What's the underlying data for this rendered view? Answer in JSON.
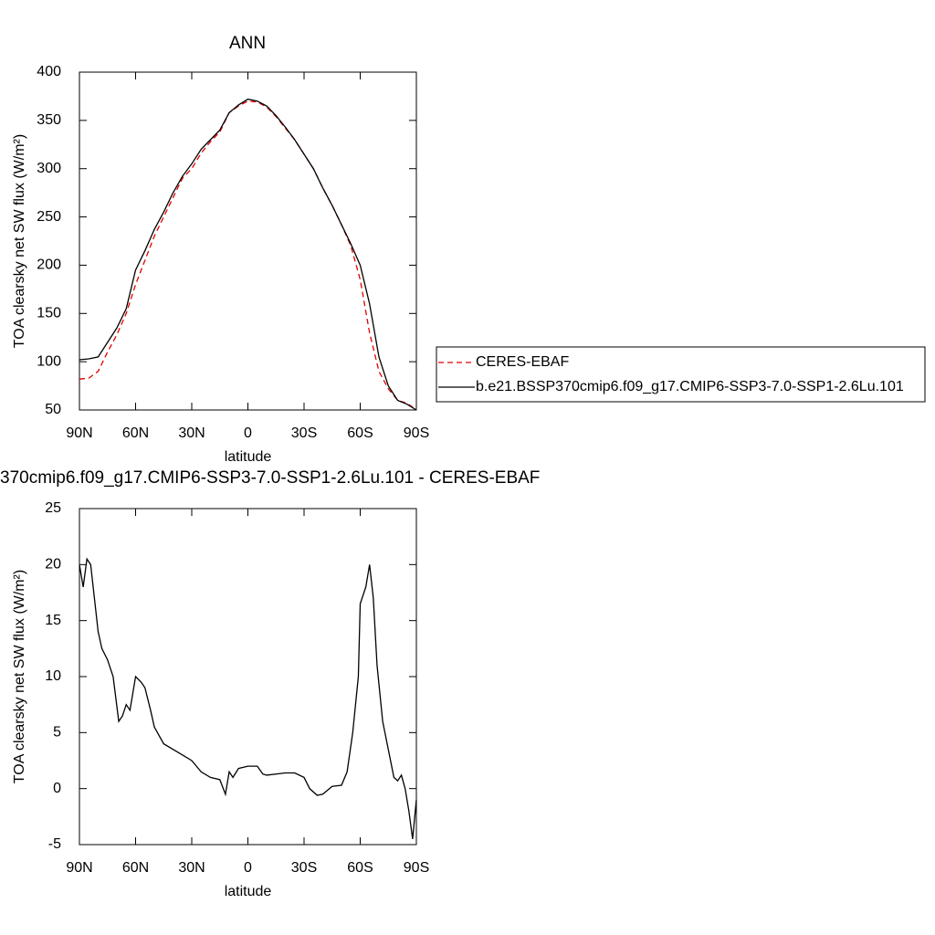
{
  "chart_data": [
    {
      "type": "line",
      "title": "ANN",
      "xlabel": "latitude",
      "ylabel": "TOA clearsky net SW flux (W/m²)",
      "x": [
        90,
        85,
        80,
        75,
        70,
        65,
        60,
        55,
        50,
        45,
        40,
        35,
        30,
        25,
        20,
        15,
        10,
        5,
        0,
        -5,
        -10,
        -15,
        -20,
        -25,
        -30,
        -35,
        -40,
        -45,
        -50,
        -55,
        -60,
        -65,
        -70,
        -75,
        -80,
        -85,
        -90
      ],
      "xlim": [
        90,
        -90
      ],
      "xticks": [
        {
          "value": 90,
          "label": "90N"
        },
        {
          "value": 60,
          "label": "60N"
        },
        {
          "value": 30,
          "label": "30N"
        },
        0,
        {
          "value": -30,
          "label": "30S"
        },
        {
          "value": -60,
          "label": "60S"
        },
        {
          "value": -90,
          "label": "90S"
        }
      ],
      "ylim": [
        50,
        400
      ],
      "yticks": [
        50,
        100,
        150,
        200,
        250,
        300,
        350,
        400
      ],
      "legend": "right",
      "series": [
        {
          "name": "CERES-EBAF",
          "color": "#e00000",
          "dash": "dashed",
          "values": [
            82,
            83,
            90,
            110,
            128,
            150,
            180,
            205,
            230,
            250,
            270,
            290,
            300,
            316,
            328,
            338,
            358,
            365,
            370,
            369,
            364,
            354,
            342,
            330,
            315,
            300,
            280,
            262,
            242,
            220,
            185,
            130,
            90,
            72,
            60,
            57,
            50
          ]
        },
        {
          "name": "b.e21.BSSP370cmip6.f09_g17.CMIP6-SSP3-7.0-SSP1-2.6Lu.101",
          "color": "#000000",
          "dash": "solid",
          "values": [
            102,
            103,
            105,
            120,
            135,
            155,
            195,
            215,
            237,
            255,
            275,
            292,
            305,
            320,
            330,
            340,
            358,
            366,
            372,
            370,
            365,
            355,
            343,
            330,
            315,
            300,
            280,
            262,
            242,
            222,
            200,
            160,
            105,
            75,
            60,
            56,
            50
          ]
        }
      ]
    },
    {
      "type": "line",
      "title": "370cmip6.f09_g17.CMIP6-SSP3-7.0-SSP1-2.6Lu.101 - CERES-EBAF",
      "xlabel": "latitude",
      "ylabel": "TOA clearsky net SW flux (W/m²)",
      "x": [
        90,
        88,
        86,
        84,
        80,
        78,
        75,
        72,
        69,
        67,
        65,
        63,
        60,
        57,
        55,
        52,
        50,
        45,
        40,
        35,
        30,
        25,
        20,
        15,
        12,
        10,
        8,
        5,
        0,
        -5,
        -8,
        -10,
        -15,
        -20,
        -25,
        -30,
        -33,
        -37,
        -40,
        -45,
        -50,
        -53,
        -56,
        -59,
        -60,
        -63,
        -65,
        -67,
        -69,
        -72,
        -75,
        -78,
        -80,
        -82,
        -84,
        -86,
        -88,
        -90
      ],
      "xlim": [
        90,
        -90
      ],
      "xticks": [
        {
          "value": 90,
          "label": "90N"
        },
        {
          "value": 60,
          "label": "60N"
        },
        {
          "value": 30,
          "label": "30N"
        },
        0,
        {
          "value": -30,
          "label": "30S"
        },
        {
          "value": -60,
          "label": "60S"
        },
        {
          "value": -90,
          "label": "90S"
        }
      ],
      "ylim": [
        -5,
        25
      ],
      "yticks": [
        -5,
        0,
        5,
        10,
        15,
        20,
        25
      ],
      "series": [
        {
          "color": "#000000",
          "dash": "solid",
          "values": [
            20,
            18,
            20.5,
            20,
            14,
            12.5,
            11.5,
            10,
            6,
            6.5,
            7.5,
            7,
            10,
            9.5,
            9,
            7,
            5.5,
            4,
            3.5,
            3,
            2.5,
            1.5,
            1,
            0.8,
            -0.5,
            1.5,
            1,
            1.8,
            2,
            2,
            1.3,
            1.2,
            1.3,
            1.4,
            1.4,
            1,
            0,
            -0.6,
            -0.5,
            0.2,
            0.3,
            1.5,
            5,
            10,
            16.5,
            18,
            20,
            17,
            11,
            6,
            3.5,
            1,
            0.7,
            1.2,
            0,
            -2,
            -4.5,
            -1
          ]
        }
      ]
    }
  ]
}
